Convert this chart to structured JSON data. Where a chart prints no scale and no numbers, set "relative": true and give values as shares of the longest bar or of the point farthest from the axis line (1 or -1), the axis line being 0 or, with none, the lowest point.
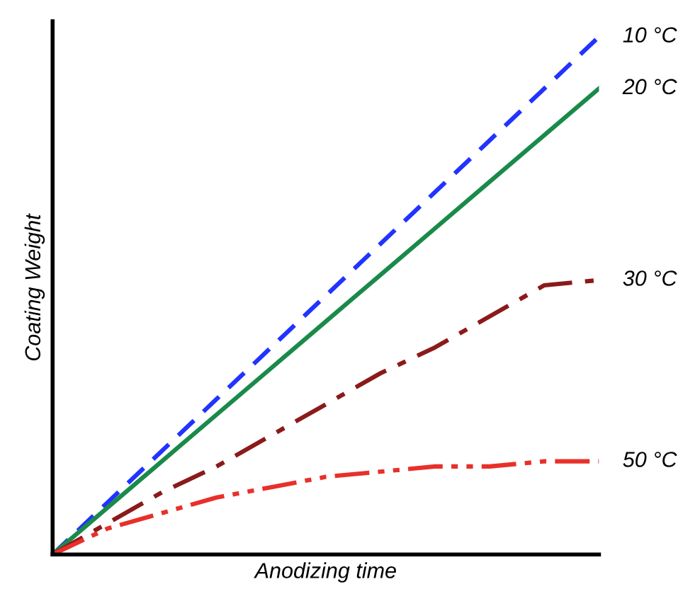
{
  "chart_data": {
    "type": "line",
    "relative": true,
    "xlabel": "Anodizing time",
    "ylabel": "Coating Weight",
    "categories": [
      null,
      null,
      null,
      null,
      null,
      null,
      null,
      null,
      null,
      null,
      null
    ],
    "legend": false,
    "marker": "none",
    "series": [
      {
        "name": "10 °C",
        "color": "#2233ff",
        "line_style": "dashed",
        "values": [
          0,
          0.1,
          0.2,
          0.3,
          0.4,
          0.5,
          0.6,
          0.7,
          0.8,
          0.9,
          1.0
        ]
      },
      {
        "name": "20 °C",
        "color": "#1a8a4a",
        "line_style": "solid",
        "values": [
          0,
          0.09,
          0.18,
          0.27,
          0.36,
          0.45,
          0.54,
          0.63,
          0.72,
          0.81,
          0.9
        ]
      },
      {
        "name": "30 °C",
        "color": "#8b1a1a",
        "line_style": "dashdot",
        "values": [
          0,
          0.06,
          0.12,
          0.17,
          0.23,
          0.29,
          0.35,
          0.4,
          0.46,
          0.52,
          0.53
        ]
      },
      {
        "name": "50 °C",
        "color": "#e8302a",
        "line_style": "dashdotdot",
        "values": [
          0,
          0.05,
          0.08,
          0.11,
          0.13,
          0.15,
          0.16,
          0.17,
          0.17,
          0.18,
          0.18
        ]
      }
    ]
  }
}
